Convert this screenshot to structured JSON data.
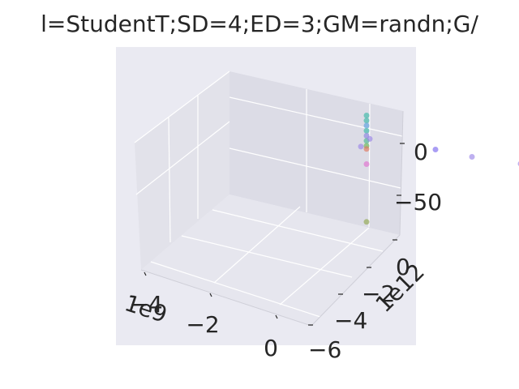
{
  "chart_data": {
    "type": "scatter",
    "projection": "3d",
    "title": "l=StudentT;SD=4;ED=3;GM=randn;G/",
    "xaxis": {
      "offset_label": "1e9",
      "tick_labels": [
        "−4",
        "−2",
        "0"
      ],
      "ticks": [
        -4,
        -2,
        0
      ]
    },
    "yaxis": {
      "offset_label": "1e12",
      "tick_labels": [
        "−6",
        "−4",
        "−2",
        "0"
      ],
      "ticks": [
        -6,
        -4,
        -2,
        0
      ]
    },
    "zaxis": {
      "tick_labels": [
        "−50",
        "0"
      ],
      "ticks": [
        -50,
        0
      ]
    },
    "grid": true,
    "background": "#eaeaf2",
    "points": [
      {
        "x": -4.5,
        "y": -1.0,
        "z": 20,
        "color": "#9b86e8"
      },
      {
        "x": -3.0,
        "y": -1.0,
        "z": 10,
        "color": "#9b86e8"
      },
      {
        "x": -1.0,
        "y": -4.5,
        "z": -50,
        "color": "#7b68ee"
      },
      {
        "x": 0.0,
        "y": 0.0,
        "z": 30,
        "color": "#3cb8a8"
      },
      {
        "x": 0.0,
        "y": 0.0,
        "z": 25,
        "color": "#3cb8a8"
      },
      {
        "x": 0.0,
        "y": 0.0,
        "z": 20,
        "color": "#5aa0e0"
      },
      {
        "x": 0.0,
        "y": 0.0,
        "z": 15,
        "color": "#3cb8a8"
      },
      {
        "x": 0.0,
        "y": 0.0,
        "z": 10,
        "color": "#8a84e0"
      },
      {
        "x": 0.0,
        "y": 0.0,
        "z": 5,
        "color": "#4db890"
      },
      {
        "x": 0.0,
        "y": 0.0,
        "z": 0,
        "color": "#6ab858"
      },
      {
        "x": 0.0,
        "y": 0.0,
        "z": -3,
        "color": "#e07860"
      },
      {
        "x": 0.0,
        "y": 0.0,
        "z": -18,
        "color": "#e070d0"
      },
      {
        "x": 0.0,
        "y": 0.0,
        "z": -75,
        "color": "#90a850"
      },
      {
        "x": 0.1,
        "y": 0.3,
        "z": 2,
        "color": "#9b86e8"
      },
      {
        "x": -0.1,
        "y": 0.0,
        "z": 8,
        "color": "#9b86e8"
      }
    ]
  }
}
